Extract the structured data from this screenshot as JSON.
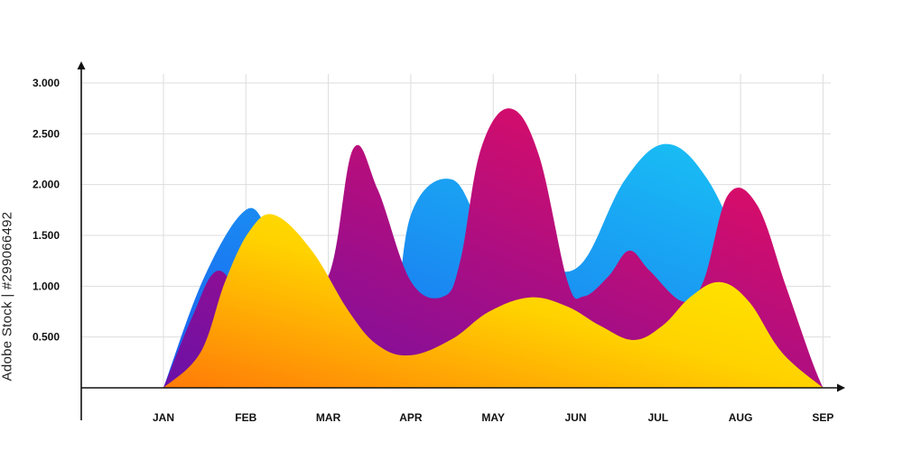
{
  "watermark": {
    "vertical_text": "Adobe Stock | #299066492",
    "repeated_text": "Adobe Stock"
  },
  "chart_data": {
    "type": "area",
    "title": "",
    "xlabel": "",
    "ylabel": "",
    "categories": [
      "JAN",
      "FEB",
      "MAR",
      "APR",
      "MAY",
      "JUN",
      "JUL",
      "AUG",
      "SEP"
    ],
    "y_tick_labels": [
      "0.500",
      "1.000",
      "1.500",
      "2.000",
      "2.500",
      "3.000"
    ],
    "ylim": [
      0,
      3000
    ],
    "grid": true,
    "legend": "none",
    "series": [
      {
        "gradient": [
          "#1a5cf0",
          "#19c8f5"
        ],
        "points": [
          [
            0.0,
            0
          ],
          [
            0.5,
            1100
          ],
          [
            1.0,
            1750
          ],
          [
            1.3,
            1550
          ],
          [
            1.7,
            1300
          ],
          [
            2.0,
            1050
          ],
          [
            2.4,
            750
          ],
          [
            2.75,
            350
          ],
          [
            3.0,
            1700
          ],
          [
            3.5,
            2050
          ],
          [
            3.9,
            1500
          ],
          [
            4.3,
            1200
          ],
          [
            4.7,
            1150
          ],
          [
            5.1,
            1250
          ],
          [
            5.6,
            2050
          ],
          [
            6.1,
            2400
          ],
          [
            6.6,
            2050
          ],
          [
            7.1,
            1200
          ],
          [
            7.6,
            450
          ],
          [
            8.0,
            0
          ]
        ]
      },
      {
        "gradient": [
          "#6a10a8",
          "#f20c5a"
        ],
        "points": [
          [
            0.0,
            0
          ],
          [
            0.35,
            700
          ],
          [
            0.65,
            1150
          ],
          [
            1.0,
            900
          ],
          [
            1.5,
            900
          ],
          [
            2.0,
            1100
          ],
          [
            2.3,
            2350
          ],
          [
            2.6,
            1950
          ],
          [
            3.0,
            1050
          ],
          [
            3.4,
            900
          ],
          [
            3.6,
            1250
          ],
          [
            3.85,
            2350
          ],
          [
            4.2,
            2750
          ],
          [
            4.55,
            2300
          ],
          [
            4.9,
            1050
          ],
          [
            5.1,
            900
          ],
          [
            5.4,
            1100
          ],
          [
            5.65,
            1350
          ],
          [
            5.9,
            1150
          ],
          [
            6.3,
            850
          ],
          [
            6.55,
            1050
          ],
          [
            6.85,
            1900
          ],
          [
            7.2,
            1800
          ],
          [
            7.55,
            1000
          ],
          [
            7.85,
            300
          ],
          [
            8.0,
            0
          ]
        ]
      },
      {
        "gradient": [
          "#ff7a08",
          "#ffd200",
          "#fff200"
        ],
        "points": [
          [
            0.0,
            0
          ],
          [
            0.45,
            350
          ],
          [
            0.75,
            1050
          ],
          [
            1.05,
            1550
          ],
          [
            1.35,
            1700
          ],
          [
            1.8,
            1350
          ],
          [
            2.25,
            750
          ],
          [
            2.6,
            420
          ],
          [
            3.0,
            320
          ],
          [
            3.5,
            480
          ],
          [
            3.95,
            750
          ],
          [
            4.45,
            890
          ],
          [
            4.9,
            800
          ],
          [
            5.3,
            610
          ],
          [
            5.7,
            470
          ],
          [
            6.05,
            610
          ],
          [
            6.4,
            900
          ],
          [
            6.75,
            1040
          ],
          [
            7.1,
            850
          ],
          [
            7.5,
            350
          ],
          [
            8.0,
            0
          ]
        ]
      }
    ]
  }
}
